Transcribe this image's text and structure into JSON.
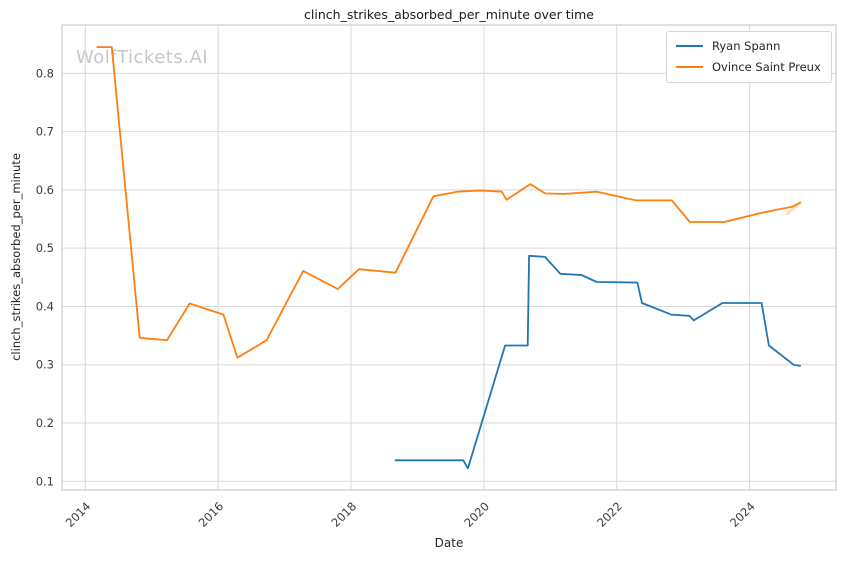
{
  "figure": {
    "watermark": "WolfTickets.AI"
  },
  "theme": {
    "grid_color": "#d9d9d9",
    "spine_color": "#cccccc",
    "tick_label_color": "#3c3c3c",
    "text_color": "#262626",
    "background": "#ffffff"
  },
  "chart_data": {
    "type": "line",
    "title": "clinch_strikes_absorbed_per_minute over time",
    "xlabel": "Date",
    "ylabel": "clinch_strikes_absorbed_per_minute",
    "grid": true,
    "legend_position": "upper right",
    "xlim": [
      2013.65,
      2025.3
    ],
    "ylim": [
      0.085,
      0.883
    ],
    "x_ticks": [
      2014,
      2016,
      2018,
      2020,
      2022,
      2024
    ],
    "y_ticks": [
      0.1,
      0.2,
      0.3,
      0.4,
      0.5,
      0.6,
      0.7,
      0.8
    ],
    "series": [
      {
        "name": "Ryan Spann",
        "color": "#1f77b4",
        "x": [
          2018.67,
          2019.69,
          2019.76,
          2020.32,
          2020.66,
          2020.68,
          2020.92,
          2021.15,
          2021.47,
          2021.7,
          2022.31,
          2022.38,
          2022.82,
          2023.09,
          2023.16,
          2023.59,
          2024.18,
          2024.29,
          2024.66,
          2024.76
        ],
        "y": [
          0.136,
          0.136,
          0.122,
          0.333,
          0.333,
          0.487,
          0.485,
          0.456,
          0.454,
          0.442,
          0.441,
          0.406,
          0.386,
          0.384,
          0.376,
          0.406,
          0.406,
          0.333,
          0.3,
          0.298
        ]
      },
      {
        "name": "Ovince Saint Preux",
        "color": "#ff7f0e",
        "x": [
          2014.18,
          2014.4,
          2014.82,
          2015.23,
          2015.57,
          2016.08,
          2016.29,
          2016.73,
          2017.28,
          2017.8,
          2018.12,
          2018.67,
          2019.24,
          2019.6,
          2019.95,
          2020.27,
          2020.34,
          2020.7,
          2020.92,
          2021.2,
          2021.7,
          2022.29,
          2022.83,
          2023.1,
          2023.62,
          2024.19,
          2024.64,
          2024.76
        ],
        "y": [
          0.845,
          0.845,
          0.346,
          0.342,
          0.405,
          0.386,
          0.312,
          0.342,
          0.461,
          0.43,
          0.464,
          0.458,
          0.589,
          0.597,
          0.599,
          0.597,
          0.583,
          0.61,
          0.594,
          0.593,
          0.597,
          0.582,
          0.582,
          0.545,
          0.545,
          0.561,
          0.571,
          0.578
        ]
      }
    ]
  }
}
